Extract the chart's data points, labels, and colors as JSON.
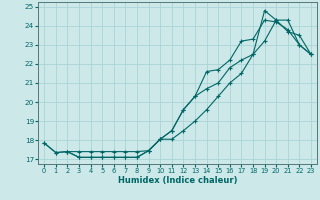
{
  "xlabel": "Humidex (Indice chaleur)",
  "bg_color": "#cce8e8",
  "grid_color": "#aad4d4",
  "line_color": "#006666",
  "spine_color": "#557777",
  "xlim": [
    -0.5,
    23.5
  ],
  "ylim": [
    16.75,
    25.25
  ],
  "yticks": [
    17,
    18,
    19,
    20,
    21,
    22,
    23,
    24,
    25
  ],
  "xticks": [
    0,
    1,
    2,
    3,
    4,
    5,
    6,
    7,
    8,
    9,
    10,
    11,
    12,
    13,
    14,
    15,
    16,
    17,
    18,
    19,
    20,
    21,
    22,
    23
  ],
  "line1_x": [
    0,
    1,
    2,
    3,
    4,
    5,
    6,
    7,
    8,
    9,
    10,
    11,
    12,
    13,
    14,
    15,
    16,
    17,
    18,
    19,
    20,
    21,
    22,
    23
  ],
  "line1_y": [
    17.85,
    17.35,
    17.4,
    17.1,
    17.1,
    17.1,
    17.1,
    17.1,
    17.1,
    17.45,
    18.05,
    18.5,
    19.6,
    20.3,
    20.7,
    21.0,
    21.8,
    22.2,
    22.5,
    24.8,
    24.3,
    23.7,
    23.5,
    22.5
  ],
  "line2_x": [
    0,
    1,
    2,
    3,
    4,
    5,
    6,
    7,
    8,
    9,
    10,
    11,
    12,
    13,
    14,
    15,
    16,
    17,
    18,
    19,
    20,
    21,
    22,
    23
  ],
  "line2_y": [
    17.85,
    17.35,
    17.4,
    17.1,
    17.1,
    17.1,
    17.1,
    17.1,
    17.1,
    17.45,
    18.05,
    18.5,
    19.6,
    20.3,
    21.6,
    21.7,
    22.2,
    23.2,
    23.3,
    24.3,
    24.2,
    23.8,
    23.0,
    22.5
  ],
  "line3_x": [
    2,
    3,
    4,
    5,
    6,
    7,
    8,
    9,
    10,
    11,
    12,
    13,
    14,
    15,
    16,
    17,
    18,
    19,
    20,
    21,
    22,
    23
  ],
  "line3_y": [
    17.4,
    17.4,
    17.4,
    17.4,
    17.4,
    17.4,
    17.4,
    17.45,
    18.05,
    18.05,
    18.5,
    19.0,
    19.6,
    20.3,
    21.0,
    21.5,
    22.5,
    23.2,
    24.3,
    24.3,
    23.0,
    22.5
  ]
}
